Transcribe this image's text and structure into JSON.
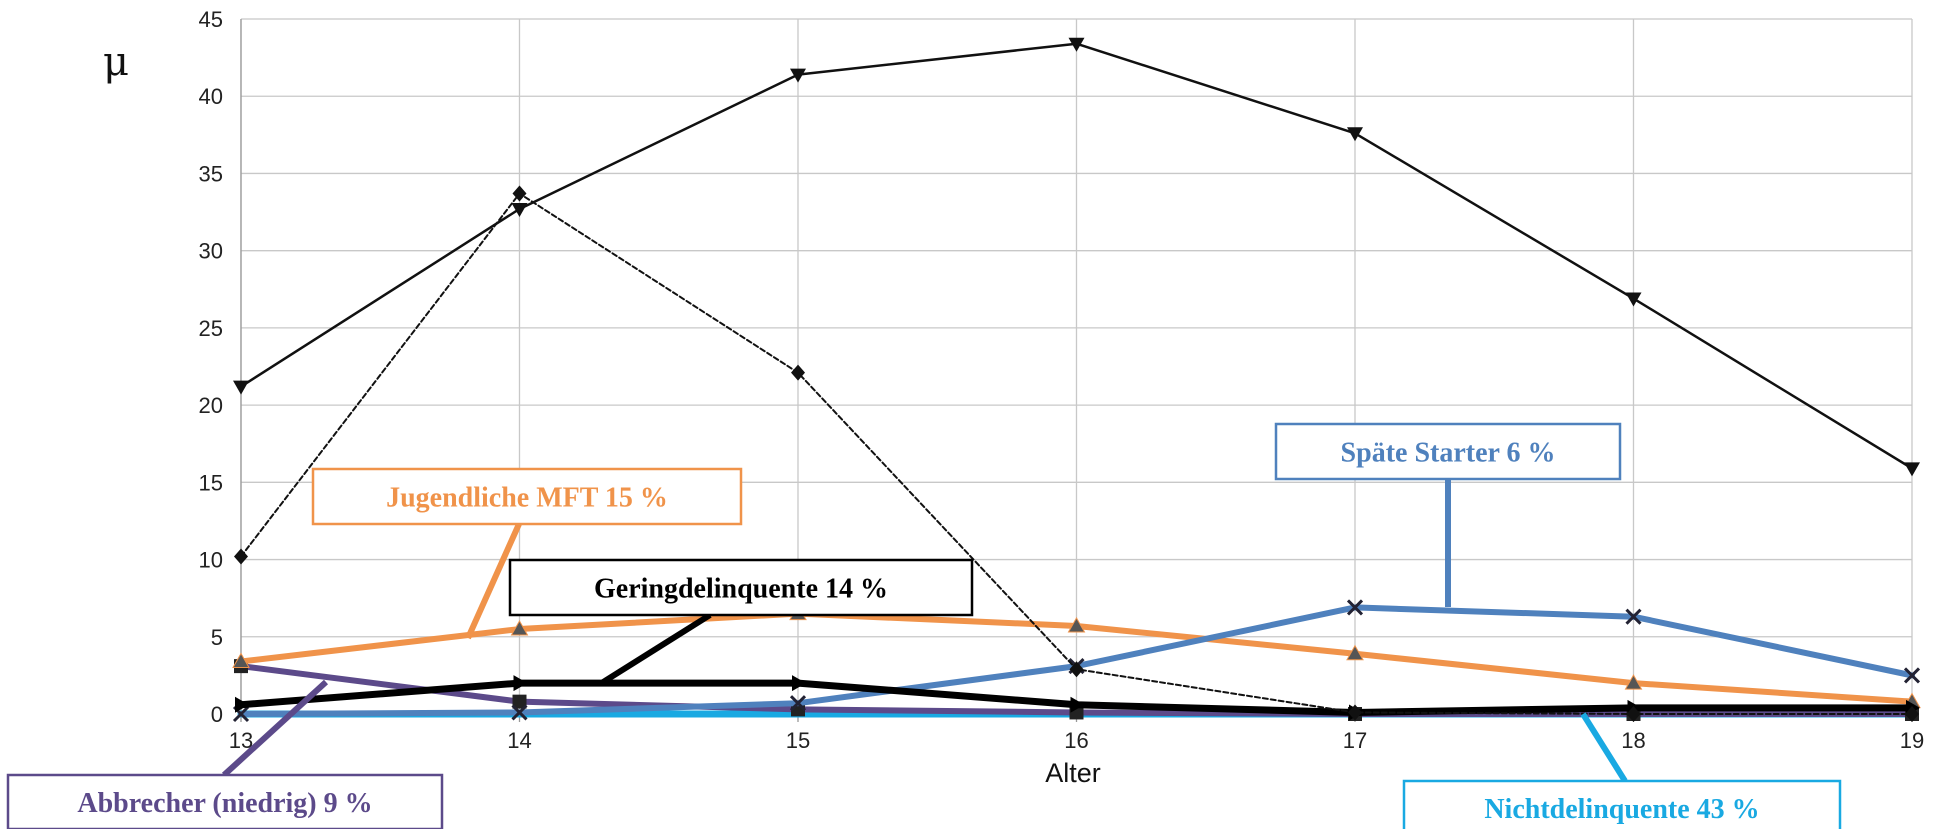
{
  "chart_data": {
    "type": "line",
    "title": "",
    "xlabel": "Alter",
    "ylabel": "μ",
    "x": [
      13,
      14,
      15,
      16,
      17,
      18,
      19
    ],
    "xlim": [
      13,
      19
    ],
    "ylim": [
      0,
      45
    ],
    "yticks": [
      0,
      5,
      10,
      15,
      20,
      25,
      30,
      35,
      40,
      45
    ],
    "grid": true,
    "series": [
      {
        "values": [
          21.2,
          32.7,
          41.4,
          43.4,
          37.6,
          26.9,
          15.9
        ],
        "color": "#111111",
        "style": "solid",
        "marker": "triangle-down"
      },
      {
        "values": [
          10.2,
          33.7,
          22.1,
          2.9,
          0.1,
          0.0,
          0.0
        ],
        "color": "#111111",
        "style": "dashed",
        "marker": "diamond"
      },
      {
        "name": "Jugendliche MFT 15 %",
        "values": [
          3.4,
          5.5,
          6.5,
          5.7,
          3.9,
          2.0,
          0.8
        ],
        "color": "#f0934a",
        "style": "solid",
        "marker": "triangle-up"
      },
      {
        "name": "Späte Starter 6 %",
        "values": [
          0.0,
          0.1,
          0.7,
          3.1,
          6.9,
          6.3,
          2.5
        ],
        "color": "#4f81bd",
        "style": "solid",
        "marker": "x"
      },
      {
        "name": "Geringdelinquente 14 %",
        "values": [
          0.6,
          2.0,
          2.0,
          0.6,
          0.1,
          0.4,
          0.4
        ],
        "color": "#000000",
        "style": "solid",
        "marker": "triangle-right"
      },
      {
        "name": "Abbrecher (niedrig) 9 %",
        "values": [
          3.1,
          0.8,
          0.3,
          0.1,
          0.0,
          0.0,
          0.0
        ],
        "color": "#5c4a8a",
        "style": "solid",
        "marker": "square"
      },
      {
        "name": "Nichtdelinquente 43 %",
        "values": [
          0.0,
          0.0,
          0.0,
          0.0,
          0.0,
          0.0,
          0.0
        ],
        "color": "#19a9e2",
        "style": "solid",
        "marker": "none"
      }
    ],
    "annotations": [
      {
        "text": "Jugendliche MFT 15 %",
        "color": "#f0934a",
        "series": 2
      },
      {
        "text": "Späte Starter 6 %",
        "color": "#4f81bd",
        "series": 3
      },
      {
        "text": "Geringdelinquente 14 %",
        "color": "#000000",
        "series": 4
      },
      {
        "text": "Abbrecher (niedrig) 9 %",
        "color": "#5c4a8a",
        "series": 5
      },
      {
        "text": "Nichtdelinquente 43 %",
        "color": "#19a9e2",
        "series": 6
      }
    ]
  }
}
